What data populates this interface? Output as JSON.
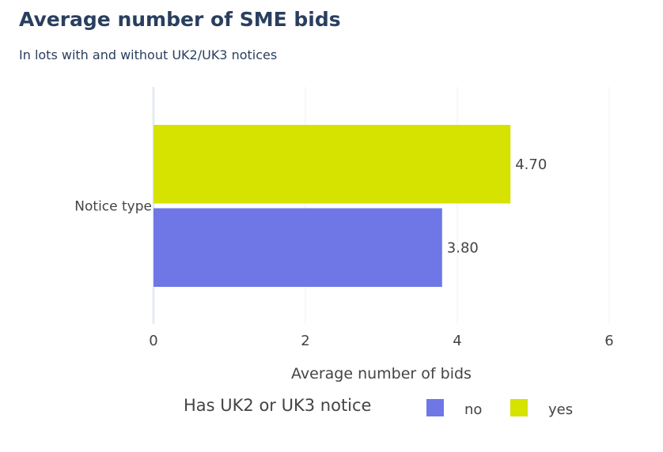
{
  "title": "Average number of SME bids",
  "subtitle": "In lots with and without UK2/UK3 notices",
  "chart_data": {
    "type": "bar",
    "orientation": "horizontal",
    "category": "Notice type",
    "series": [
      {
        "name": "no",
        "value": 3.8,
        "label": "3.80",
        "color": "#6e77e5"
      },
      {
        "name": "yes",
        "value": 4.7,
        "label": "4.70",
        "color": "#d6e200"
      }
    ],
    "xlabel": "Average number of bids",
    "xlim": [
      0,
      6
    ],
    "xticks": [
      "0",
      "2",
      "4",
      "6"
    ],
    "grid": true,
    "legend_title": "Has UK2 or UK3 notice",
    "legend_placement": "bottom"
  }
}
